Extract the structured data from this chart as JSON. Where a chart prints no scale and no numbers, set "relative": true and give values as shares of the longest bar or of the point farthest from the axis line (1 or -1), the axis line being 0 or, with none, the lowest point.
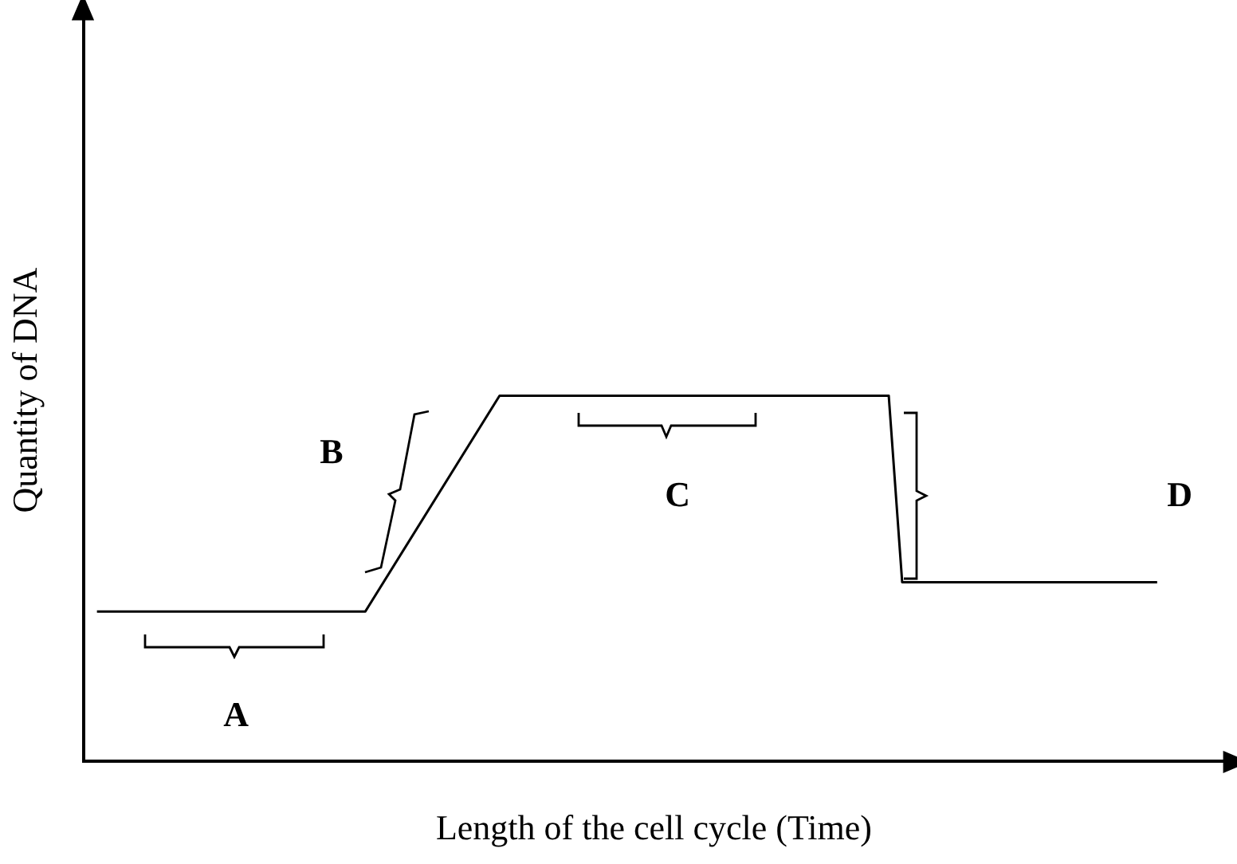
{
  "chart_data": {
    "type": "line",
    "relative": true,
    "xlabel": "Length of the cell cycle (Time)",
    "ylabel": "Quantity of DNA",
    "categories": [
      null,
      null,
      null,
      null,
      null,
      null,
      null,
      null,
      null,
      null,
      null,
      null,
      null,
      null,
      null,
      null,
      null,
      null,
      null,
      null,
      null,
      null,
      null,
      null,
      null,
      null,
      null,
      null,
      null,
      null,
      null,
      null,
      null,
      null,
      null,
      null,
      null,
      null,
      null,
      null,
      null,
      null,
      null,
      null,
      null,
      null,
      null,
      null,
      null,
      null,
      null,
      null,
      null,
      null,
      null,
      null,
      null,
      null,
      null,
      null,
      null,
      null,
      null,
      null,
      null,
      null,
      null,
      null,
      null,
      null,
      null,
      null,
      null,
      null,
      null,
      null,
      null,
      null,
      null,
      null,
      null,
      null,
      null,
      null,
      null,
      null
    ],
    "series": [
      {
        "color": "#000000",
        "values": [
          null,
          0.41,
          null,
          null,
          null,
          null,
          null,
          null,
          null,
          null,
          null,
          null,
          null,
          null,
          null,
          null,
          null,
          null,
          null,
          null,
          null,
          0.41,
          null,
          null,
          null,
          null,
          null,
          null,
          null,
          null,
          null,
          1,
          null,
          null,
          null,
          null,
          null,
          null,
          null,
          null,
          null,
          null,
          null,
          null,
          null,
          null,
          null,
          null,
          null,
          null,
          null,
          null,
          null,
          null,
          null,
          null,
          null,
          null,
          null,
          null,
          1,
          0.49,
          null,
          null,
          null,
          null,
          null,
          null,
          null,
          null,
          null,
          null,
          null,
          null,
          null,
          null,
          null,
          null,
          null,
          null,
          0.49,
          null,
          null,
          null,
          null,
          null
        ]
      }
    ],
    "annotations": [
      "A",
      "B",
      "C",
      "D"
    ],
    "grid": false,
    "legend": false,
    "marker": "none",
    "line_style": "solid"
  }
}
